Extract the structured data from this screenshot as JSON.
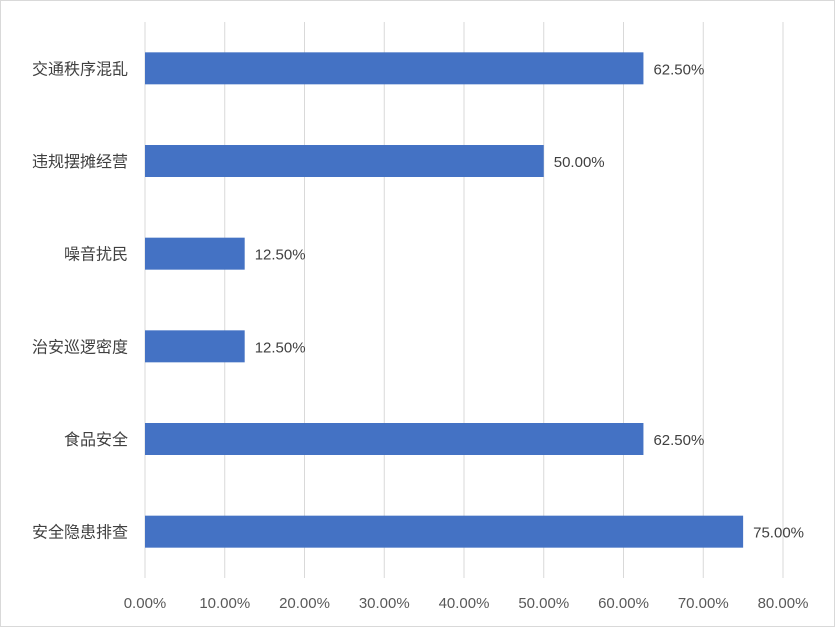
{
  "chart_data": {
    "type": "bar",
    "orientation": "horizontal",
    "categories": [
      "交通秩序混乱",
      "违规摆摊经营",
      "噪音扰民",
      "治安巡逻密度",
      "食品安全",
      "安全隐患排查"
    ],
    "values": [
      62.5,
      50.0,
      12.5,
      12.5,
      62.5,
      75.0
    ],
    "data_labels": [
      "62.50%",
      "50.00%",
      "12.50%",
      "12.50%",
      "62.50%",
      "75.00%"
    ],
    "xlim": [
      0,
      80
    ],
    "ticks": [
      0,
      10,
      20,
      30,
      40,
      50,
      60,
      70,
      80
    ],
    "tick_labels": [
      "0.00%",
      "10.00%",
      "20.00%",
      "30.00%",
      "40.00%",
      "50.00%",
      "60.00%",
      "70.00%",
      "80.00%"
    ],
    "title": "",
    "xlabel": "",
    "ylabel": "",
    "grid": "vertical",
    "legend": "none",
    "bar_color": "#4472C4",
    "grid_color": "#d9d9d9"
  }
}
